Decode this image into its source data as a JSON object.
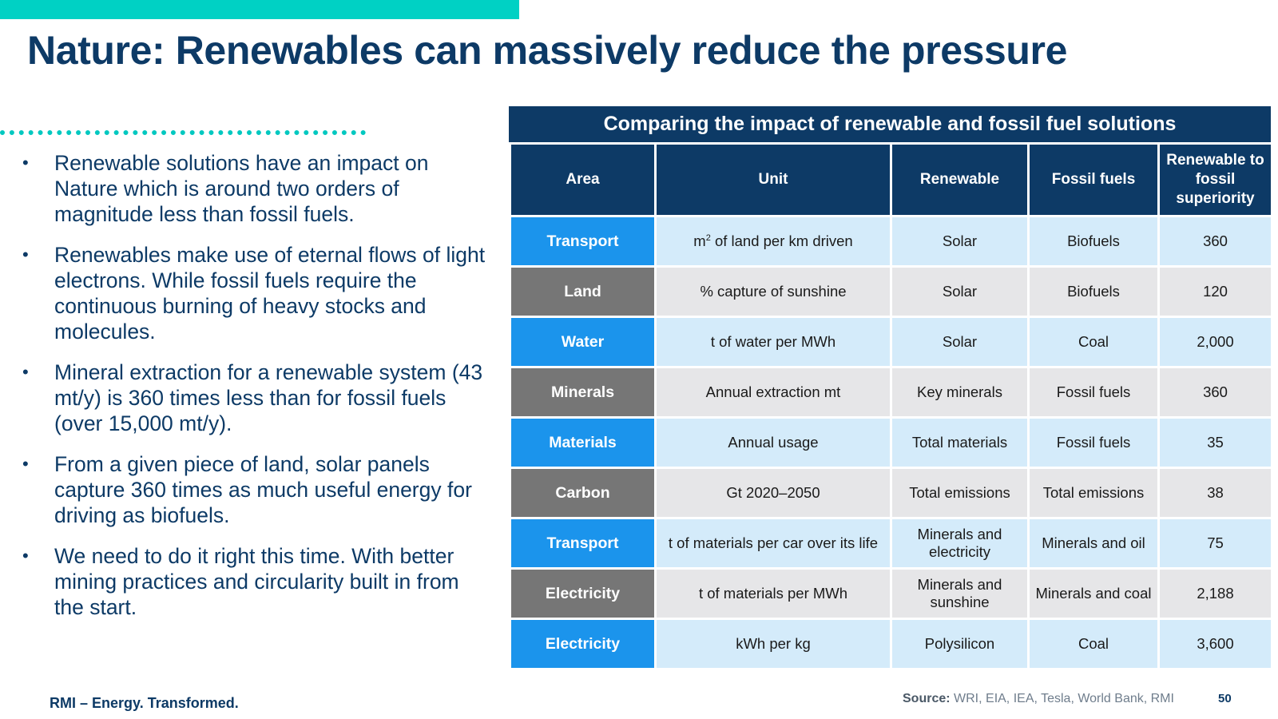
{
  "slide": {
    "title": "Nature: Renewables can massively reduce the pressure",
    "bullets": [
      "Renewable solutions have an impact on Nature which is around two orders of magnitude less than fossil fuels.",
      "Renewables make use of eternal flows of light electrons. While fossil fuels require the continuous burning of heavy stocks and molecules.",
      "Mineral extraction for a renewable system (43 mt/y) is 360 times less than for fossil fuels (over 15,000 mt/y).",
      "From a given piece of land, solar panels capture 360 times as much useful energy for driving as biofuels.",
      "We need to do it right this time. With better mining practices and circularity built in from the start."
    ],
    "bullet_marker": "•"
  },
  "table": {
    "title": "Comparing the impact of renewable and fossil fuel solutions",
    "headers": [
      "Area",
      "Unit",
      "Renewable",
      "Fossil fuels",
      "Renewable to fossil superiority"
    ],
    "rows": [
      {
        "area": "Transport",
        "unit_prefix": "m",
        "unit_sup": "2",
        "unit_suffix": " of land per km driven",
        "renewable": "Solar",
        "fossil": "Biofuels",
        "ratio": "360",
        "style": "blue"
      },
      {
        "area": "Land",
        "unit": "% capture of sunshine",
        "renewable": "Solar",
        "fossil": "Biofuels",
        "ratio": "120",
        "style": "gray"
      },
      {
        "area": "Water",
        "unit": "t of water per MWh",
        "renewable": "Solar",
        "fossil": "Coal",
        "ratio": "2,000",
        "style": "blue"
      },
      {
        "area": "Minerals",
        "unit": "Annual extraction mt",
        "renewable": "Key minerals",
        "fossil": "Fossil fuels",
        "ratio": "360",
        "style": "gray"
      },
      {
        "area": "Materials",
        "unit": "Annual usage",
        "renewable": "Total materials",
        "fossil": "Fossil fuels",
        "ratio": "35",
        "style": "blue"
      },
      {
        "area": "Carbon",
        "unit": "Gt 2020–2050",
        "renewable": "Total emissions",
        "fossil": "Total emissions",
        "ratio": "38",
        "style": "gray"
      },
      {
        "area": "Transport",
        "unit": "t of materials per car over its life",
        "renewable": "Minerals and electricity",
        "fossil": "Minerals and oil",
        "ratio": "75",
        "style": "blue"
      },
      {
        "area": "Electricity",
        "unit": "t of materials per MWh",
        "renewable": "Minerals and sunshine",
        "fossil": "Minerals and coal",
        "ratio": "2,188",
        "style": "gray"
      },
      {
        "area": "Electricity",
        "unit": "kWh per kg",
        "renewable": "Polysilicon",
        "fossil": "Coal",
        "ratio": "3,600",
        "style": "blue"
      }
    ]
  },
  "footer": {
    "brand": "RMI – Energy. Transformed.",
    "source_label": "Source:",
    "source_text": " WRI, EIA, IEA, Tesla, World Bank, RMI",
    "page_number": "50"
  },
  "colors": {
    "accent_teal": "#00d1c4",
    "navy": "#0d3a66",
    "area_blue": "#1b94ec",
    "area_gray": "#767676",
    "row_blue": "#d4ebfa",
    "row_gray": "#e6e6e8"
  }
}
